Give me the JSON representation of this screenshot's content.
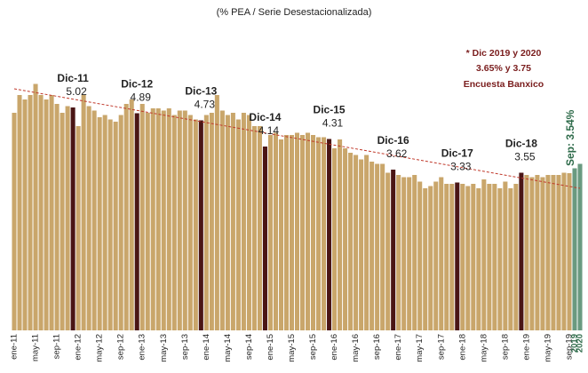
{
  "chart_data": {
    "type": "bar",
    "subtitle": "(% PEA / Serie Desestacionalizada)",
    "categories": [
      "ene-11",
      null,
      null,
      null,
      "may-11",
      null,
      null,
      null,
      "sep-11",
      null,
      null,
      null,
      "ene-12",
      null,
      null,
      null,
      "may-12",
      null,
      null,
      null,
      "sep-12",
      null,
      null,
      null,
      "ene-13",
      null,
      null,
      null,
      "may-13",
      null,
      null,
      null,
      "sep-13",
      null,
      null,
      null,
      "ene-14",
      null,
      null,
      null,
      "may-14",
      null,
      null,
      null,
      "sep-14",
      null,
      null,
      null,
      "ene-15",
      null,
      null,
      null,
      "may-15",
      null,
      null,
      null,
      "sep-15",
      null,
      null,
      null,
      "ene-16",
      null,
      null,
      null,
      "may-16",
      null,
      null,
      null,
      "sep-16",
      null,
      null,
      null,
      "ene-17",
      null,
      null,
      null,
      "may-17",
      null,
      null,
      null,
      "sep-17",
      null,
      null,
      null,
      "ene-18",
      null,
      null,
      null,
      "may-18",
      null,
      null,
      null,
      "sep-18",
      null,
      null,
      null,
      "ene-19",
      null,
      null,
      null,
      "may-19",
      null,
      null,
      null,
      "sep-19",
      "2019",
      "2020"
    ],
    "values": [
      4.9,
      5.3,
      5.2,
      5.3,
      5.55,
      5.3,
      5.2,
      5.3,
      5.1,
      4.9,
      5.05,
      5.02,
      4.6,
      5.3,
      5.05,
      4.95,
      4.8,
      4.85,
      4.75,
      4.7,
      4.85,
      5.1,
      5.2,
      4.89,
      5.1,
      4.9,
      5.0,
      5.0,
      4.95,
      5.0,
      4.85,
      4.95,
      4.95,
      4.85,
      4.75,
      4.73,
      4.85,
      4.9,
      5.3,
      4.95,
      4.85,
      4.9,
      4.75,
      4.9,
      4.85,
      4.6,
      4.6,
      4.14,
      4.4,
      4.45,
      4.3,
      4.4,
      4.4,
      4.45,
      4.4,
      4.45,
      4.4,
      4.35,
      4.35,
      4.31,
      4.1,
      4.3,
      4.1,
      4.0,
      3.95,
      3.85,
      3.95,
      3.8,
      3.75,
      3.75,
      3.55,
      3.62,
      3.5,
      3.45,
      3.45,
      3.5,
      3.35,
      3.2,
      3.25,
      3.35,
      3.45,
      3.3,
      3.3,
      3.33,
      3.3,
      3.25,
      3.3,
      3.2,
      3.4,
      3.3,
      3.3,
      3.2,
      3.35,
      3.2,
      3.3,
      3.55,
      3.5,
      3.45,
      3.5,
      3.45,
      3.5,
      3.5,
      3.5,
      3.55,
      3.54,
      3.65,
      3.75
    ],
    "colors": [
      "#c9a66b",
      "#c9a66b",
      "#c9a66b",
      "#c9a66b",
      "#c9a66b",
      "#c9a66b",
      "#c9a66b",
      "#c9a66b",
      "#c9a66b",
      "#c9a66b",
      "#c9a66b",
      "#4a1515",
      "#c9a66b",
      "#c9a66b",
      "#c9a66b",
      "#c9a66b",
      "#c9a66b",
      "#c9a66b",
      "#c9a66b",
      "#c9a66b",
      "#c9a66b",
      "#c9a66b",
      "#c9a66b",
      "#4a1515",
      "#c9a66b",
      "#c9a66b",
      "#c9a66b",
      "#c9a66b",
      "#c9a66b",
      "#c9a66b",
      "#c9a66b",
      "#c9a66b",
      "#c9a66b",
      "#c9a66b",
      "#c9a66b",
      "#4a1515",
      "#c9a66b",
      "#c9a66b",
      "#c9a66b",
      "#c9a66b",
      "#c9a66b",
      "#c9a66b",
      "#c9a66b",
      "#c9a66b",
      "#c9a66b",
      "#c9a66b",
      "#c9a66b",
      "#4a1515",
      "#c9a66b",
      "#c9a66b",
      "#c9a66b",
      "#c9a66b",
      "#c9a66b",
      "#c9a66b",
      "#c9a66b",
      "#c9a66b",
      "#c9a66b",
      "#c9a66b",
      "#c9a66b",
      "#4a1515",
      "#c9a66b",
      "#c9a66b",
      "#c9a66b",
      "#c9a66b",
      "#c9a66b",
      "#c9a66b",
      "#c9a66b",
      "#c9a66b",
      "#c9a66b",
      "#c9a66b",
      "#c9a66b",
      "#4a1515",
      "#c9a66b",
      "#c9a66b",
      "#c9a66b",
      "#c9a66b",
      "#c9a66b",
      "#c9a66b",
      "#c9a66b",
      "#c9a66b",
      "#c9a66b",
      "#c9a66b",
      "#c9a66b",
      "#4a1515",
      "#c9a66b",
      "#c9a66b",
      "#c9a66b",
      "#c9a66b",
      "#c9a66b",
      "#c9a66b",
      "#c9a66b",
      "#c9a66b",
      "#c9a66b",
      "#c9a66b",
      "#c9a66b",
      "#4a1515",
      "#c9a66b",
      "#c9a66b",
      "#c9a66b",
      "#c9a66b",
      "#c9a66b",
      "#c9a66b",
      "#c9a66b",
      "#c9a66b",
      "#c9a66b",
      "#6a9a80",
      "#6a9a80"
    ],
    "ylim": [
      0,
      7
    ],
    "trendline": {
      "values": [
        5.44,
        3.2
      ],
      "color": "#c0392b"
    },
    "annotations": [
      {
        "label": "Dic-11",
        "index": 11
      },
      {
        "label": "Dic-12",
        "index": 23
      },
      {
        "label": "Dic-13",
        "index": 35
      },
      {
        "label": "Dic-14",
        "index": 47
      },
      {
        "label": "Dic-15",
        "index": 59
      },
      {
        "label": "Dic-16",
        "index": 71
      },
      {
        "label": "Dic-17",
        "index": 83
      },
      {
        "label": "Dic-18",
        "index": 95
      }
    ],
    "last_label": "Sep: 3.54%",
    "note": [
      "* Dic 2019 y 2020",
      "3.65% y 3.75",
      "Encuesta Banxico"
    ]
  }
}
